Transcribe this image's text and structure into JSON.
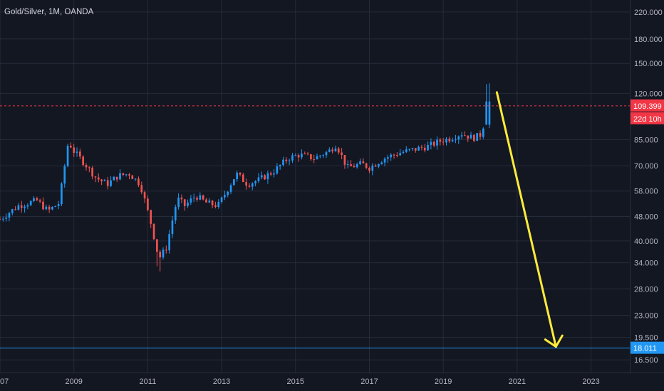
{
  "chart_data": {
    "type": "candlestick",
    "title": "Gold/Silver, 1M, OANDA",
    "scale": "log",
    "ylim": [
      15.5,
      233
    ],
    "xlim": [
      2007.0,
      2024.05
    ],
    "grid": true,
    "y_ticks": [
      "220.000",
      "180.000",
      "150.000",
      "120.000",
      "85.000",
      "70.000",
      "58.000",
      "48.000",
      "40.000",
      "34.000",
      "28.000",
      "23.000",
      "19.500",
      "16.500"
    ],
    "x_ticks": [
      {
        "label": "07",
        "year": 2007.0
      },
      {
        "label": "2009",
        "year": 2009.0
      },
      {
        "label": "2011",
        "year": 2011.0
      },
      {
        "label": "2013",
        "year": 2013.0
      },
      {
        "label": "2015",
        "year": 2015.0
      },
      {
        "label": "2017",
        "year": 2017.0
      },
      {
        "label": "2019",
        "year": 2019.0
      },
      {
        "label": "2021",
        "year": 2021.0
      },
      {
        "label": "2023",
        "year": 2023.0
      }
    ],
    "price_line": {
      "value": 109.399,
      "label": "109.399",
      "countdown": "22d 10h",
      "color": "#f23645"
    },
    "support_line": {
      "value": 18.011,
      "label": "18.011",
      "color": "#2196f3"
    },
    "annotation_arrow": {
      "color": "#ffeb3b",
      "from": {
        "year": 2020.45,
        "value": 121
      },
      "to": {
        "year": 2022.05,
        "value": 18.2
      }
    },
    "colors": {
      "up": "#2196f3",
      "down": "#ef5350",
      "background": "#131722"
    },
    "anchors": [
      [
        2007.0,
        47
      ],
      [
        2007.5,
        52
      ],
      [
        2008.0,
        54
      ],
      [
        2008.3,
        50
      ],
      [
        2008.6,
        53
      ],
      [
        2008.85,
        84
      ],
      [
        2009.0,
        78
      ],
      [
        2009.3,
        71
      ],
      [
        2009.6,
        64
      ],
      [
        2009.9,
        61
      ],
      [
        2010.2,
        65
      ],
      [
        2010.5,
        66
      ],
      [
        2010.8,
        61
      ],
      [
        2011.1,
        45
      ],
      [
        2011.3,
        35
      ],
      [
        2011.5,
        38
      ],
      [
        2011.8,
        55
      ],
      [
        2012.0,
        52
      ],
      [
        2012.3,
        56
      ],
      [
        2012.6,
        53
      ],
      [
        2012.9,
        52
      ],
      [
        2013.1,
        57
      ],
      [
        2013.4,
        66
      ],
      [
        2013.7,
        61
      ],
      [
        2014.0,
        63
      ],
      [
        2014.4,
        67
      ],
      [
        2014.8,
        74
      ],
      [
        2015.1,
        76
      ],
      [
        2015.5,
        74
      ],
      [
        2015.9,
        78
      ],
      [
        2016.1,
        82
      ],
      [
        2016.4,
        69
      ],
      [
        2016.8,
        71
      ],
      [
        2017.0,
        69
      ],
      [
        2017.4,
        74
      ],
      [
        2017.8,
        77
      ],
      [
        2018.2,
        79
      ],
      [
        2018.6,
        81
      ],
      [
        2018.9,
        84
      ],
      [
        2019.2,
        86
      ],
      [
        2019.5,
        89
      ],
      [
        2019.8,
        86
      ],
      [
        2020.0,
        88
      ],
      [
        2020.12,
        97
      ],
      [
        2020.2,
        113
      ],
      [
        2020.3,
        110
      ]
    ]
  }
}
